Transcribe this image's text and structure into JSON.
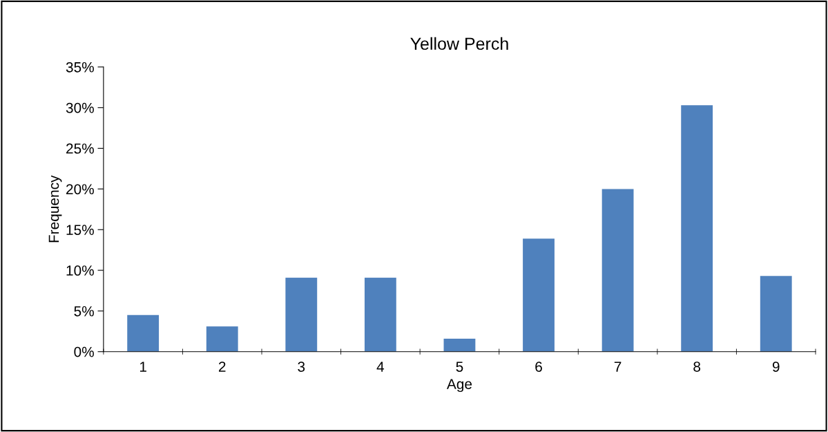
{
  "chart_data": {
    "type": "bar",
    "title": "Yellow Perch",
    "xlabel": "Age",
    "ylabel": "Frequency",
    "categories": [
      "1",
      "2",
      "3",
      "4",
      "5",
      "6",
      "7",
      "8",
      "9"
    ],
    "values": [
      4.5,
      3.1,
      9.1,
      9.1,
      1.6,
      13.9,
      20.0,
      30.3,
      9.3
    ],
    "color": "#4f81bd",
    "ylim": [
      0,
      35
    ],
    "yticks": [
      {
        "value": 0,
        "label": "0%"
      },
      {
        "value": 5,
        "label": "5%"
      },
      {
        "value": 10,
        "label": "10%"
      },
      {
        "value": 15,
        "label": "15%"
      },
      {
        "value": 20,
        "label": "20%"
      },
      {
        "value": 25,
        "label": "25%"
      },
      {
        "value": 30,
        "label": "30%"
      },
      {
        "value": 35,
        "label": "35%"
      }
    ],
    "grid": false,
    "legend": false
  }
}
